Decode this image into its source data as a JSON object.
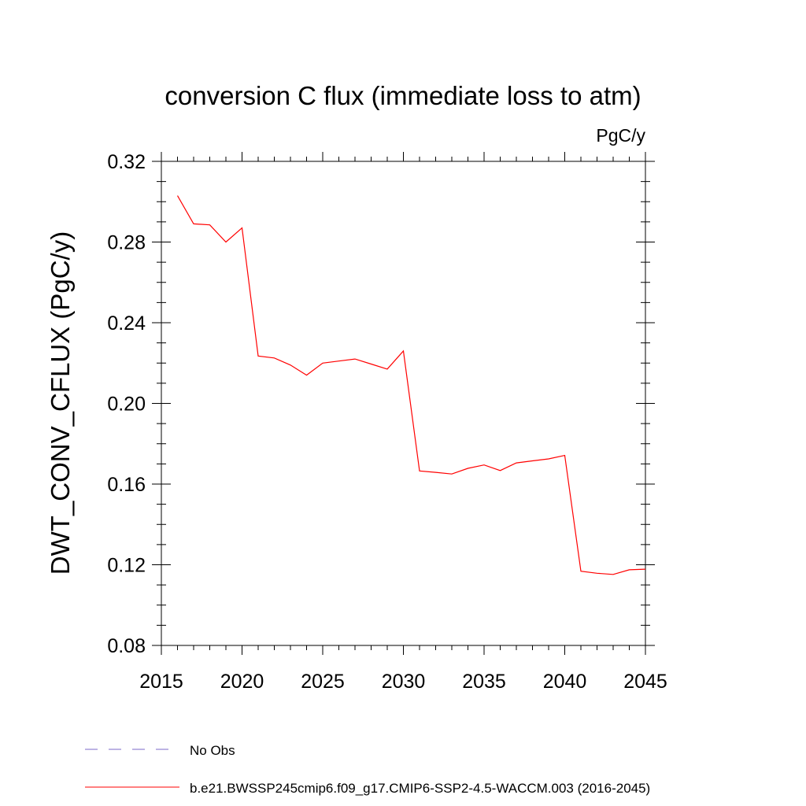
{
  "chart_data": {
    "type": "line",
    "title": "conversion C flux (immediate loss to atm)",
    "units_label": "PgC/y",
    "ylabel": "DWT_CONV_CFLUX  (PgC/y)",
    "xlabel": "",
    "xlim": [
      2015,
      2045
    ],
    "ylim": [
      0.08,
      0.32
    ],
    "x_ticks": [
      "2015",
      "2020",
      "2025",
      "2030",
      "2035",
      "2040",
      "2045"
    ],
    "y_ticks": [
      "0.08",
      "0.12",
      "0.16",
      "0.20",
      "0.24",
      "0.28",
      "0.32"
    ],
    "grid": false,
    "legend_position": "bottom",
    "series": [
      {
        "name": "b.e21.BWSSP245cmip6.f09_g17.CMIP6-SSP2-4.5-WACCM.003 (2016-2045)",
        "color": "#ff0000",
        "style": "solid",
        "x": [
          2016,
          2017,
          2018,
          2019,
          2020,
          2021,
          2022,
          2023,
          2024,
          2025,
          2026,
          2027,
          2028,
          2029,
          2030,
          2031,
          2032,
          2033,
          2034,
          2035,
          2036,
          2037,
          2038,
          2039,
          2040,
          2041,
          2042,
          2043,
          2044,
          2045
        ],
        "values": [
          0.303,
          0.289,
          0.2885,
          0.28,
          0.287,
          0.2235,
          0.2225,
          0.219,
          0.214,
          0.22,
          0.221,
          0.222,
          0.2195,
          0.217,
          0.226,
          0.1665,
          0.1658,
          0.165,
          0.1678,
          0.1695,
          0.1667,
          0.1705,
          0.1715,
          0.1725,
          0.1742,
          0.1168,
          0.1158,
          0.1152,
          0.1175,
          0.1178
        ]
      }
    ],
    "legend": [
      {
        "label": "No Obs",
        "color": "#7b68c8",
        "style": "dashed"
      },
      {
        "label": "b.e21.BWSSP245cmip6.f09_g17.CMIP6-SSP2-4.5-WACCM.003 (2016-2045)",
        "color": "#ff0000",
        "style": "solid"
      }
    ]
  }
}
